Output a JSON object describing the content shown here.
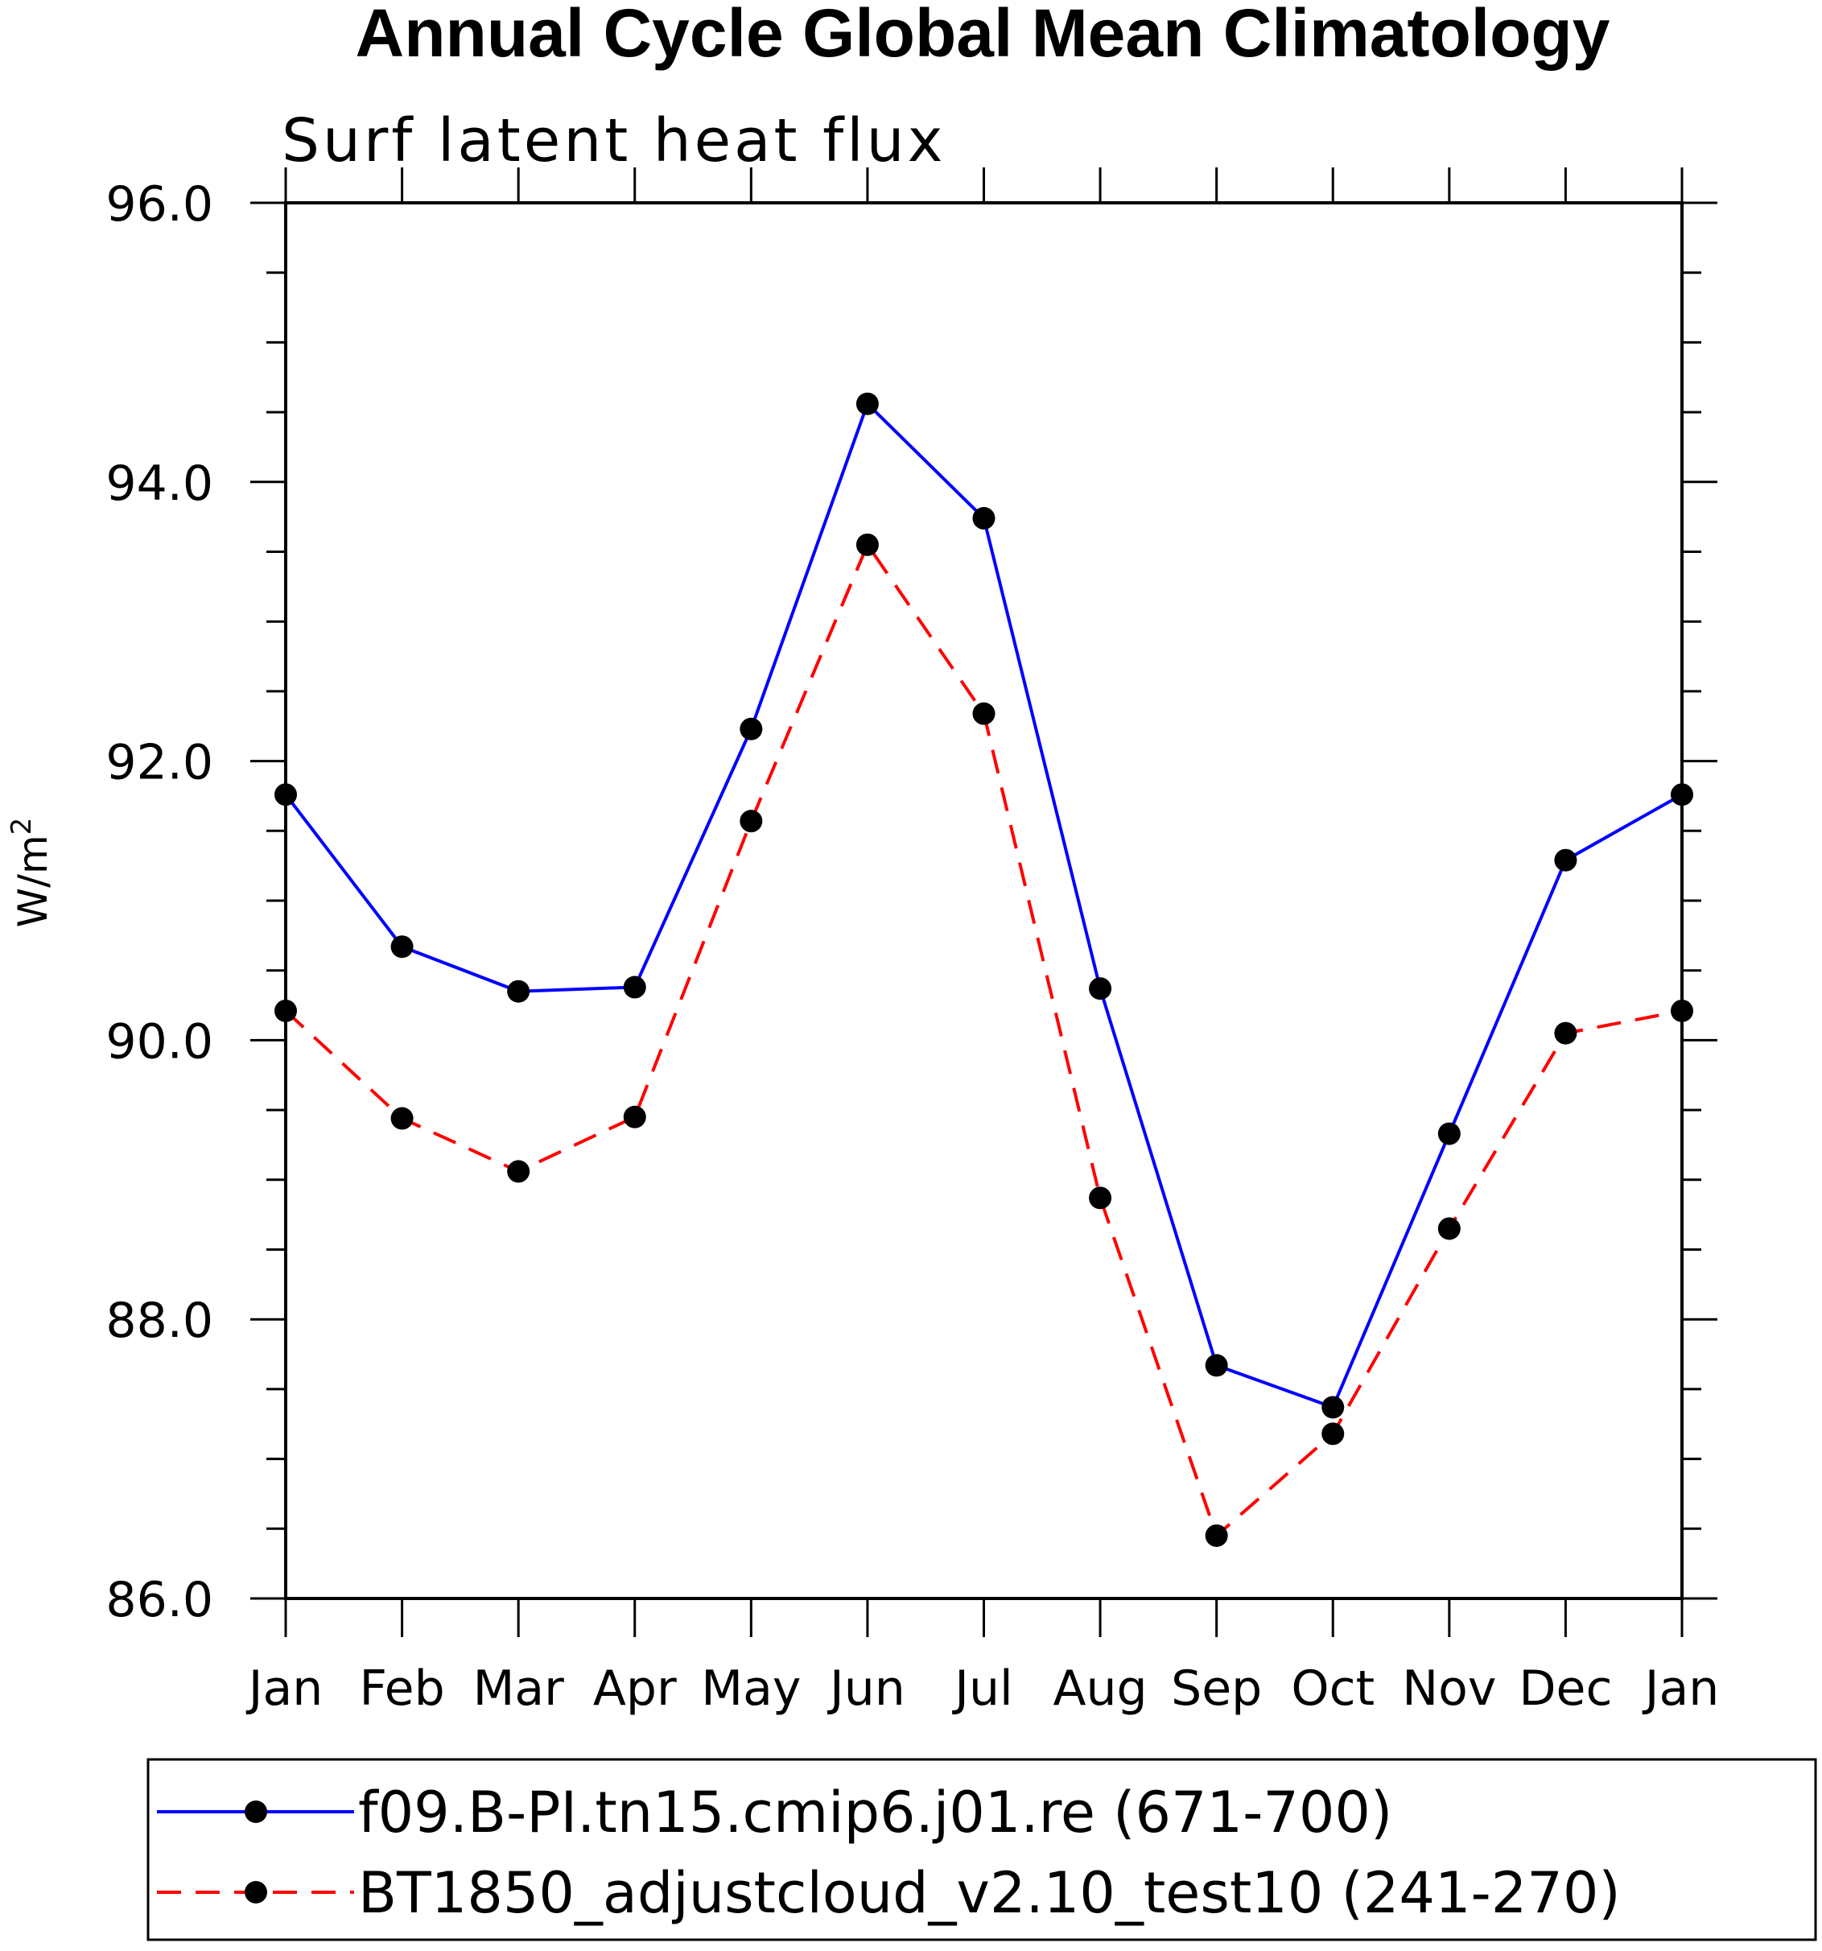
{
  "chart_data": {
    "type": "line",
    "title": "Annual Cycle Global Mean Climatology",
    "subtitle": "Surf latent heat flux",
    "xlabel": "",
    "ylabel": "W/m",
    "ylabel_superscript": "2",
    "ylim": [
      86.0,
      96.0
    ],
    "yticks": [
      "86.0",
      "88.0",
      "90.0",
      "92.0",
      "94.0",
      "96.0"
    ],
    "categories": [
      "Jan",
      "Feb",
      "Mar",
      "Apr",
      "May",
      "Jun",
      "Jul",
      "Aug",
      "Sep",
      "Oct",
      "Nov",
      "Dec",
      "Jan"
    ],
    "series": [
      {
        "name": "f09.B-PI.tn15.cmip6.j01.re (671-700)",
        "color": "#0000ff",
        "style": "solid",
        "marker": "filled-circle",
        "values": [
          91.76,
          90.67,
          90.35,
          90.38,
          92.23,
          94.56,
          93.74,
          90.37,
          87.67,
          87.37,
          89.33,
          91.29,
          91.76
        ]
      },
      {
        "name": "BT1850_adjustcloud_v2.10_test10 (241-270)",
        "color": "#ff0000",
        "style": "dashed",
        "marker": "filled-circle",
        "values": [
          90.21,
          89.44,
          89.06,
          89.45,
          91.57,
          93.55,
          92.34,
          88.87,
          86.45,
          87.18,
          88.65,
          90.05,
          90.21
        ]
      }
    ],
    "legend_position": "bottom"
  }
}
